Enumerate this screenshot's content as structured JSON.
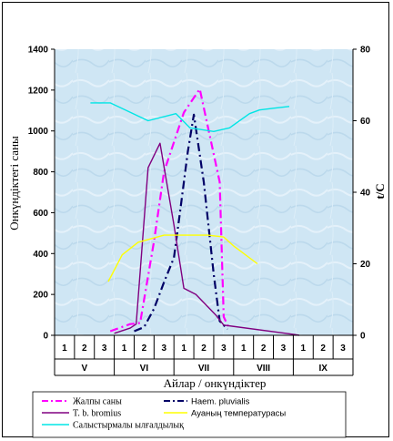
{
  "chart_data": {
    "type": "line",
    "title": "",
    "xlabel": "Айлар / онкүндіктер",
    "ylabel_left": "Онкүндіктегі саны",
    "ylabel_right": "t/C",
    "ylim_left": [
      0,
      1400
    ],
    "ylim_right": [
      0,
      80
    ],
    "yticks_left": [
      "0",
      "200",
      "400",
      "600",
      "800",
      "1000",
      "1200",
      "1400"
    ],
    "yticks_right": [
      "0",
      "20",
      "40",
      "60",
      "80"
    ],
    "decade_labels": [
      "1",
      "2",
      "3",
      "1",
      "2",
      "3",
      "1",
      "2",
      "3",
      "1",
      "2",
      "3",
      "1",
      "2",
      "3"
    ],
    "months": [
      "V",
      "VI",
      "VII",
      "VIII",
      "IX"
    ],
    "grid": false,
    "background_color": "#cfe6f4",
    "legend_position": "bottom",
    "series": [
      {
        "name": "Жалпы саны",
        "axis": "left",
        "color": "#ff00ff",
        "style": "dash-dot",
        "x": [
          2.8,
          3.8,
          4.3,
          5.0,
          5.5,
          6.5,
          7.3,
          8.3,
          8.5,
          8.8
        ],
        "values": [
          20,
          55,
          60,
          460,
          800,
          1090,
          1205,
          750,
          90,
          30
        ]
      },
      {
        "name": "Haem. pluvialis",
        "axis": "left",
        "color": "#000066",
        "style": "dash-dot",
        "x": [
          4.0,
          4.5,
          5.0,
          5.5,
          6.0,
          6.3,
          6.7,
          7.0,
          7.5,
          8.0,
          8.3,
          8.7
        ],
        "values": [
          20,
          40,
          130,
          260,
          380,
          600,
          900,
          1080,
          750,
          300,
          70,
          30
        ]
      },
      {
        "name": "T. b. bromius",
        "axis": "left",
        "color": "#800080",
        "style": "solid",
        "x": [
          3.0,
          3.8,
          4.1,
          4.7,
          5.3,
          6.0,
          6.5,
          7.1,
          8.1,
          8.5,
          12.0,
          12.3
        ],
        "values": [
          10,
          35,
          55,
          820,
          940,
          540,
          230,
          200,
          100,
          50,
          5,
          0
        ]
      },
      {
        "name": "Ауаның температурасы",
        "axis": "right",
        "color": "#ffff00",
        "style": "solid",
        "x": [
          2.7,
          3.4,
          4.2,
          5.5,
          6.6,
          7.7,
          8.5,
          9.0,
          10.2
        ],
        "values": [
          15,
          22.5,
          26,
          28,
          28,
          28,
          27.5,
          25,
          20
        ]
      },
      {
        "name": "Салыстырмалы ылғалдылық",
        "axis": "right",
        "color": "#00e5e5",
        "style": "solid",
        "x": [
          1.8,
          2.8,
          4.7,
          6.1,
          6.8,
          8.0,
          8.8,
          9.8,
          10.3,
          11.0,
          11.8
        ],
        "values": [
          65,
          65,
          60,
          62,
          58,
          57,
          58,
          62,
          63,
          63.5,
          64
        ]
      }
    ]
  }
}
